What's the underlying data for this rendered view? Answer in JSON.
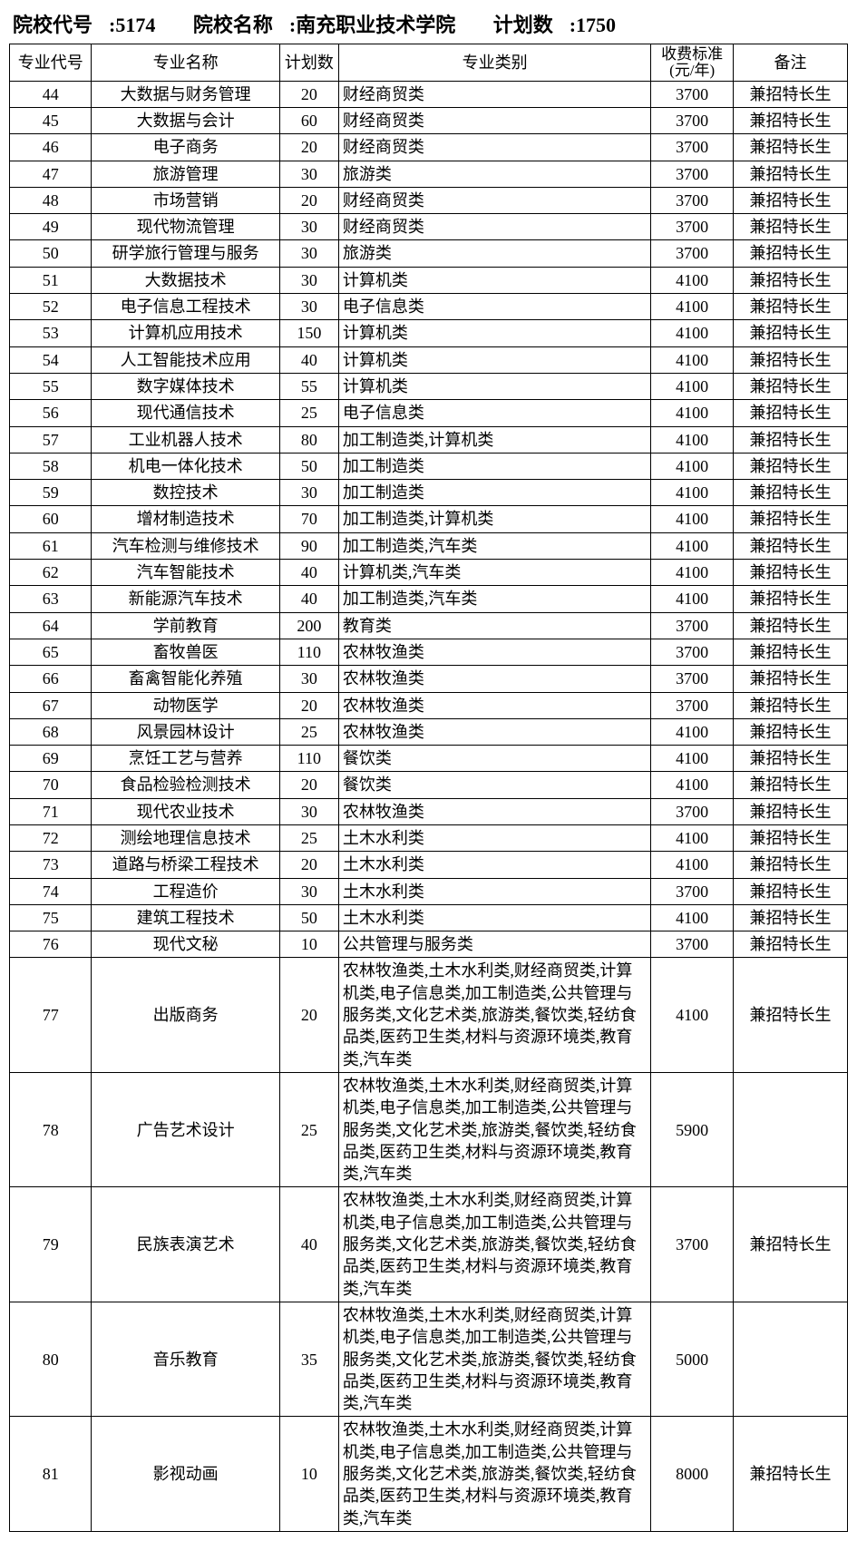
{
  "header": {
    "code_label": "院校代号",
    "code_value": "5174",
    "name_label": "院校名称",
    "name_value": "南充职业技术学院",
    "plan_label": "计划数",
    "plan_value": "1750"
  },
  "columns": {
    "major_code": "专业代号",
    "major_name": "专业名称",
    "plan": "计划数",
    "category": "专业类别",
    "fee_line1": "收费标准",
    "fee_line2": "(元/年)",
    "note": "备注"
  },
  "long_category": "农林牧渔类,土木水利类,财经商贸类,计算机类,电子信息类,加工制造类,公共管理与服务类,文化艺术类,旅游类,餐饮类,轻纺食品类,医药卫生类,材料与资源环境类,教育类,汽车类",
  "rows": [
    {
      "code": "44",
      "name": "大数据与财务管理",
      "plan": "20",
      "cat": "财经商贸类",
      "fee": "3700",
      "note": "兼招特长生"
    },
    {
      "code": "45",
      "name": "大数据与会计",
      "plan": "60",
      "cat": "财经商贸类",
      "fee": "3700",
      "note": "兼招特长生"
    },
    {
      "code": "46",
      "name": "电子商务",
      "plan": "20",
      "cat": "财经商贸类",
      "fee": "3700",
      "note": "兼招特长生"
    },
    {
      "code": "47",
      "name": "旅游管理",
      "plan": "30",
      "cat": "旅游类",
      "fee": "3700",
      "note": "兼招特长生"
    },
    {
      "code": "48",
      "name": "市场营销",
      "plan": "20",
      "cat": "财经商贸类",
      "fee": "3700",
      "note": "兼招特长生"
    },
    {
      "code": "49",
      "name": "现代物流管理",
      "plan": "30",
      "cat": "财经商贸类",
      "fee": "3700",
      "note": "兼招特长生"
    },
    {
      "code": "50",
      "name": "研学旅行管理与服务",
      "plan": "30",
      "cat": "旅游类",
      "fee": "3700",
      "note": "兼招特长生"
    },
    {
      "code": "51",
      "name": "大数据技术",
      "plan": "30",
      "cat": "计算机类",
      "fee": "4100",
      "note": "兼招特长生"
    },
    {
      "code": "52",
      "name": "电子信息工程技术",
      "plan": "30",
      "cat": "电子信息类",
      "fee": "4100",
      "note": "兼招特长生"
    },
    {
      "code": "53",
      "name": "计算机应用技术",
      "plan": "150",
      "cat": "计算机类",
      "fee": "4100",
      "note": "兼招特长生"
    },
    {
      "code": "54",
      "name": "人工智能技术应用",
      "plan": "40",
      "cat": "计算机类",
      "fee": "4100",
      "note": "兼招特长生"
    },
    {
      "code": "55",
      "name": "数字媒体技术",
      "plan": "55",
      "cat": "计算机类",
      "fee": "4100",
      "note": "兼招特长生"
    },
    {
      "code": "56",
      "name": "现代通信技术",
      "plan": "25",
      "cat": "电子信息类",
      "fee": "4100",
      "note": "兼招特长生"
    },
    {
      "code": "57",
      "name": "工业机器人技术",
      "plan": "80",
      "cat": "加工制造类,计算机类",
      "fee": "4100",
      "note": "兼招特长生"
    },
    {
      "code": "58",
      "name": "机电一体化技术",
      "plan": "50",
      "cat": "加工制造类",
      "fee": "4100",
      "note": "兼招特长生"
    },
    {
      "code": "59",
      "name": "数控技术",
      "plan": "30",
      "cat": "加工制造类",
      "fee": "4100",
      "note": "兼招特长生"
    },
    {
      "code": "60",
      "name": "增材制造技术",
      "plan": "70",
      "cat": "加工制造类,计算机类",
      "fee": "4100",
      "note": "兼招特长生"
    },
    {
      "code": "61",
      "name": "汽车检测与维修技术",
      "plan": "90",
      "cat": "加工制造类,汽车类",
      "fee": "4100",
      "note": "兼招特长生"
    },
    {
      "code": "62",
      "name": "汽车智能技术",
      "plan": "40",
      "cat": "计算机类,汽车类",
      "fee": "4100",
      "note": "兼招特长生"
    },
    {
      "code": "63",
      "name": "新能源汽车技术",
      "plan": "40",
      "cat": "加工制造类,汽车类",
      "fee": "4100",
      "note": "兼招特长生"
    },
    {
      "code": "64",
      "name": "学前教育",
      "plan": "200",
      "cat": "教育类",
      "fee": "3700",
      "note": "兼招特长生"
    },
    {
      "code": "65",
      "name": "畜牧兽医",
      "plan": "110",
      "cat": "农林牧渔类",
      "fee": "3700",
      "note": "兼招特长生"
    },
    {
      "code": "66",
      "name": "畜禽智能化养殖",
      "plan": "30",
      "cat": "农林牧渔类",
      "fee": "3700",
      "note": "兼招特长生"
    },
    {
      "code": "67",
      "name": "动物医学",
      "plan": "20",
      "cat": "农林牧渔类",
      "fee": "3700",
      "note": "兼招特长生"
    },
    {
      "code": "68",
      "name": "风景园林设计",
      "plan": "25",
      "cat": "农林牧渔类",
      "fee": "4100",
      "note": "兼招特长生"
    },
    {
      "code": "69",
      "name": "烹饪工艺与营养",
      "plan": "110",
      "cat": "餐饮类",
      "fee": "4100",
      "note": "兼招特长生"
    },
    {
      "code": "70",
      "name": "食品检验检测技术",
      "plan": "20",
      "cat": "餐饮类",
      "fee": "4100",
      "note": "兼招特长生"
    },
    {
      "code": "71",
      "name": "现代农业技术",
      "plan": "30",
      "cat": "农林牧渔类",
      "fee": "3700",
      "note": "兼招特长生"
    },
    {
      "code": "72",
      "name": "测绘地理信息技术",
      "plan": "25",
      "cat": "土木水利类",
      "fee": "4100",
      "note": "兼招特长生"
    },
    {
      "code": "73",
      "name": "道路与桥梁工程技术",
      "plan": "20",
      "cat": "土木水利类",
      "fee": "4100",
      "note": "兼招特长生"
    },
    {
      "code": "74",
      "name": "工程造价",
      "plan": "30",
      "cat": "土木水利类",
      "fee": "3700",
      "note": "兼招特长生"
    },
    {
      "code": "75",
      "name": "建筑工程技术",
      "plan": "50",
      "cat": "土木水利类",
      "fee": "4100",
      "note": "兼招特长生"
    },
    {
      "code": "76",
      "name": "现代文秘",
      "plan": "10",
      "cat": "公共管理与服务类",
      "fee": "3700",
      "note": "兼招特长生"
    },
    {
      "code": "77",
      "name": "出版商务",
      "plan": "20",
      "cat": "@long",
      "fee": "4100",
      "note": "兼招特长生"
    },
    {
      "code": "78",
      "name": "广告艺术设计",
      "plan": "25",
      "cat": "@long",
      "fee": "5900",
      "note": ""
    },
    {
      "code": "79",
      "name": "民族表演艺术",
      "plan": "40",
      "cat": "@long",
      "fee": "3700",
      "note": "兼招特长生"
    },
    {
      "code": "80",
      "name": "音乐教育",
      "plan": "35",
      "cat": "@long",
      "fee": "5000",
      "note": ""
    },
    {
      "code": "81",
      "name": "影视动画",
      "plan": "10",
      "cat": "@long",
      "fee": "8000",
      "note": "兼招特长生"
    }
  ]
}
